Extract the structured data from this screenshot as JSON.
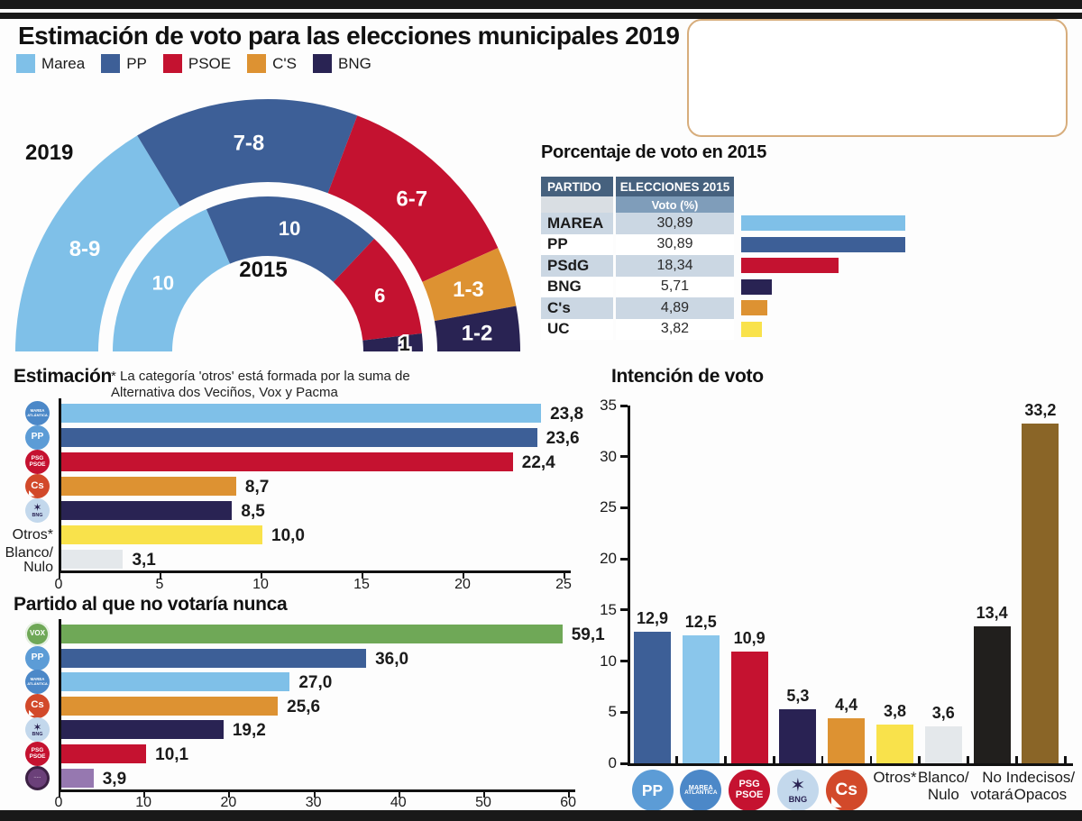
{
  "title": "Estimación de voto para las elecciones municipales 2019",
  "legend": [
    {
      "label": "Marea",
      "color": "#7fc0e8"
    },
    {
      "label": "PP",
      "color": "#3d5f97"
    },
    {
      "label": "PSOE",
      "color": "#c41230"
    },
    {
      "label": "C'S",
      "color": "#dd9232"
    },
    {
      "label": "BNG",
      "color": "#292353"
    }
  ],
  "icons": {
    "marea": {
      "bg": "#4c88c8",
      "fg": "#ffffff",
      "lines": [
        "MAREA",
        "ATLÁNTICA"
      ],
      "scale": [
        0.16,
        0.14
      ]
    },
    "pp": {
      "bg": "#5c9cd6",
      "fg": "#ffffff",
      "lines": [
        "PP"
      ],
      "scale": [
        0.38
      ]
    },
    "psoe": {
      "bg": "#c51230",
      "fg": "#ffffff",
      "lines": [
        "PSG",
        "PSOE"
      ],
      "scale": [
        0.24,
        0.24
      ]
    },
    "cs": {
      "bg": "#d2492a",
      "fg": "#ffffff",
      "lines": [
        "Cs"
      ],
      "scale": [
        0.42
      ]
    },
    "bng": {
      "bg": "#c3d8ec",
      "fg": "#292353",
      "lines": [
        "✶",
        "BNG"
      ],
      "scale": [
        0.44,
        0.2
      ]
    },
    "vox": {
      "bg": "#6fa857",
      "fg": "#ffffff",
      "lines": [
        "VOX"
      ],
      "scale": [
        0.3
      ]
    },
    "purple": {
      "bg": "#6b4079",
      "fg": "#e8ddea",
      "lines": [
        "·····"
      ],
      "scale": [
        0.18
      ]
    }
  },
  "chart_data": [
    {
      "id": "seats_halfdonut",
      "type": "pie",
      "subtype": "half-donut-double-ring",
      "rings": [
        {
          "year": "2019",
          "position": "outer",
          "segments": [
            {
              "party": "Marea",
              "seats": "8-9",
              "mid": 8.5,
              "color": "#7fc0e8"
            },
            {
              "party": "PP",
              "seats": "7-8",
              "mid": 7.5,
              "color": "#3d5f97"
            },
            {
              "party": "PSOE",
              "seats": "6-7",
              "mid": 6.5,
              "color": "#c41230"
            },
            {
              "party": "C'S",
              "seats": "1-3",
              "mid": 2.0,
              "color": "#dd9232"
            },
            {
              "party": "BNG",
              "seats": "1-2",
              "mid": 1.5,
              "color": "#292353"
            }
          ]
        },
        {
          "year": "2015",
          "position": "inner",
          "segments": [
            {
              "party": "Marea",
              "seats": "10",
              "mid": 10,
              "color": "#7fc0e8"
            },
            {
              "party": "PP",
              "seats": "10",
              "mid": 10,
              "color": "#3d5f97"
            },
            {
              "party": "PSOE",
              "seats": "6",
              "mid": 6,
              "color": "#c41230"
            },
            {
              "party": "BNG",
              "seats": "1",
              "mid": 1,
              "color": "#292353",
              "label_outside": true
            }
          ]
        }
      ]
    },
    {
      "id": "voto2015",
      "type": "table",
      "title": "Porcentaje de voto en 2015",
      "headers": {
        "col1": "PARTIDO",
        "col2": "ELECCIONES 2015",
        "sub": "Voto (%)"
      },
      "bar_max": 31,
      "rows": [
        {
          "party": "MAREA",
          "value": "30,89",
          "num": 30.89,
          "color": "#7fc0e8"
        },
        {
          "party": "PP",
          "value": "30,89",
          "num": 30.89,
          "color": "#3d5f97"
        },
        {
          "party": "PSdG",
          "value": "18,34",
          "num": 18.34,
          "color": "#c41230"
        },
        {
          "party": "BNG",
          "value": "5,71",
          "num": 5.71,
          "color": "#292353"
        },
        {
          "party": "C's",
          "value": "4,89",
          "num": 4.89,
          "color": "#dd9232"
        },
        {
          "party": "UC",
          "value": "3,82",
          "num": 3.82,
          "color": "#f9e24b"
        }
      ]
    },
    {
      "id": "estimacion",
      "type": "bar",
      "orientation": "horizontal",
      "title": "Estimación",
      "note": [
        "* La categoría 'otros' está formada por la suma de",
        "Alternativa dos Veciños, Vox y Pacma"
      ],
      "xlim": [
        0,
        25
      ],
      "xticks": [
        "0",
        "5",
        "10",
        "15",
        "20",
        "25"
      ],
      "rows": [
        {
          "icon": "marea",
          "label": "",
          "value": "23,8",
          "num": 23.8,
          "color": "#7fc0e8"
        },
        {
          "icon": "pp",
          "label": "",
          "value": "23,6",
          "num": 23.6,
          "color": "#3d5f97"
        },
        {
          "icon": "psoe",
          "label": "",
          "value": "22,4",
          "num": 22.4,
          "color": "#c51230"
        },
        {
          "icon": "cs",
          "label": "",
          "value": "8,7",
          "num": 8.7,
          "color": "#dd9232"
        },
        {
          "icon": "bng",
          "label": "",
          "value": "8,5",
          "num": 8.5,
          "color": "#292353"
        },
        {
          "icon": "",
          "label": "Otros*",
          "value": "10,0",
          "num": 10.0,
          "color": "#f9e24b"
        },
        {
          "icon": "",
          "label": "Blanco/|Nulo",
          "value": "3,1",
          "num": 3.1,
          "color": "#e4e8eb"
        }
      ]
    },
    {
      "id": "novotaria",
      "type": "bar",
      "orientation": "horizontal",
      "title": "Partido al que no votaría nunca",
      "xlim": [
        0,
        60
      ],
      "xticks": [
        "0",
        "10",
        "20",
        "30",
        "40",
        "50",
        "60"
      ],
      "rows": [
        {
          "icon": "vox",
          "label": "",
          "value": "59,1",
          "num": 59.1,
          "color": "#6fa857"
        },
        {
          "icon": "pp",
          "label": "",
          "value": "36,0",
          "num": 36.0,
          "color": "#3d5f97"
        },
        {
          "icon": "marea",
          "label": "",
          "value": "27,0",
          "num": 27.0,
          "color": "#7fc0e8"
        },
        {
          "icon": "cs",
          "label": "",
          "value": "25,6",
          "num": 25.6,
          "color": "#dd9232"
        },
        {
          "icon": "bng",
          "label": "",
          "value": "19,2",
          "num": 19.2,
          "color": "#292353"
        },
        {
          "icon": "psoe",
          "label": "",
          "value": "10,1",
          "num": 10.1,
          "color": "#c51230"
        },
        {
          "icon": "purple",
          "label": "",
          "value": "3,9",
          "num": 3.9,
          "color": "#9678b0"
        }
      ]
    },
    {
      "id": "intencion",
      "type": "bar",
      "orientation": "vertical",
      "title": "Intención de voto",
      "ylim": [
        0,
        35
      ],
      "yticks": [
        "0",
        "5",
        "10",
        "15",
        "20",
        "25",
        "30",
        "35"
      ],
      "bars": [
        {
          "icon": "pp",
          "label": "",
          "value": "12,9",
          "num": 12.9,
          "color": "#3d5f97"
        },
        {
          "icon": "marea",
          "label": "",
          "value": "12,5",
          "num": 12.5,
          "color": "#8ac6eb"
        },
        {
          "icon": "psoe",
          "label": "",
          "value": "10,9",
          "num": 10.9,
          "color": "#c51230"
        },
        {
          "icon": "bng",
          "label": "",
          "value": "5,3",
          "num": 5.3,
          "color": "#292253"
        },
        {
          "icon": "cs",
          "label": "",
          "value": "4,4",
          "num": 4.4,
          "color": "#dd9232"
        },
        {
          "icon": "",
          "label": "Otros*",
          "value": "3,8",
          "num": 3.8,
          "color": "#f9e24b"
        },
        {
          "icon": "",
          "label": "Blanco/|Nulo",
          "value": "3,6",
          "num": 3.6,
          "color": "#e4e8eb"
        },
        {
          "icon": "",
          "label": "No|votará",
          "value": "13,4",
          "num": 13.4,
          "color": "#211f1d"
        },
        {
          "icon": "",
          "label": "Indecisos/|Opacos",
          "value": "33,2",
          "num": 33.2,
          "color": "#8a6527"
        }
      ]
    }
  ]
}
